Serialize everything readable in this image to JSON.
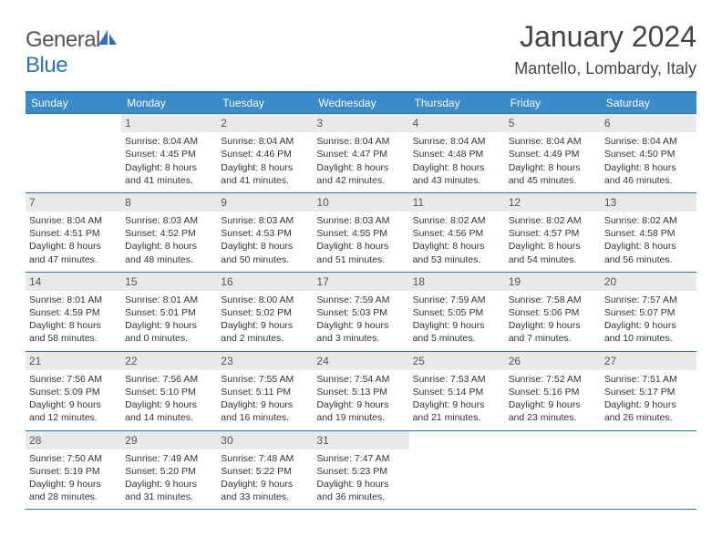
{
  "logo": {
    "general": "General",
    "blue": "Blue"
  },
  "title": "January 2024",
  "location": "Mantello, Lombardy, Italy",
  "weekdays": [
    "Sunday",
    "Monday",
    "Tuesday",
    "Wednesday",
    "Thursday",
    "Friday",
    "Saturday"
  ],
  "colors": {
    "header_bg": "#3b8bc9",
    "header_text": "#ffffff",
    "border": "#2d72b8",
    "daynum_bg": "#e9e9e9",
    "text": "#333333"
  },
  "weeks": [
    [
      null,
      {
        "n": "1",
        "sunrise": "Sunrise: 8:04 AM",
        "sunset": "Sunset: 4:45 PM",
        "dl1": "Daylight: 8 hours",
        "dl2": "and 41 minutes."
      },
      {
        "n": "2",
        "sunrise": "Sunrise: 8:04 AM",
        "sunset": "Sunset: 4:46 PM",
        "dl1": "Daylight: 8 hours",
        "dl2": "and 41 minutes."
      },
      {
        "n": "3",
        "sunrise": "Sunrise: 8:04 AM",
        "sunset": "Sunset: 4:47 PM",
        "dl1": "Daylight: 8 hours",
        "dl2": "and 42 minutes."
      },
      {
        "n": "4",
        "sunrise": "Sunrise: 8:04 AM",
        "sunset": "Sunset: 4:48 PM",
        "dl1": "Daylight: 8 hours",
        "dl2": "and 43 minutes."
      },
      {
        "n": "5",
        "sunrise": "Sunrise: 8:04 AM",
        "sunset": "Sunset: 4:49 PM",
        "dl1": "Daylight: 8 hours",
        "dl2": "and 45 minutes."
      },
      {
        "n": "6",
        "sunrise": "Sunrise: 8:04 AM",
        "sunset": "Sunset: 4:50 PM",
        "dl1": "Daylight: 8 hours",
        "dl2": "and 46 minutes."
      }
    ],
    [
      {
        "n": "7",
        "sunrise": "Sunrise: 8:04 AM",
        "sunset": "Sunset: 4:51 PM",
        "dl1": "Daylight: 8 hours",
        "dl2": "and 47 minutes."
      },
      {
        "n": "8",
        "sunrise": "Sunrise: 8:03 AM",
        "sunset": "Sunset: 4:52 PM",
        "dl1": "Daylight: 8 hours",
        "dl2": "and 48 minutes."
      },
      {
        "n": "9",
        "sunrise": "Sunrise: 8:03 AM",
        "sunset": "Sunset: 4:53 PM",
        "dl1": "Daylight: 8 hours",
        "dl2": "and 50 minutes."
      },
      {
        "n": "10",
        "sunrise": "Sunrise: 8:03 AM",
        "sunset": "Sunset: 4:55 PM",
        "dl1": "Daylight: 8 hours",
        "dl2": "and 51 minutes."
      },
      {
        "n": "11",
        "sunrise": "Sunrise: 8:02 AM",
        "sunset": "Sunset: 4:56 PM",
        "dl1": "Daylight: 8 hours",
        "dl2": "and 53 minutes."
      },
      {
        "n": "12",
        "sunrise": "Sunrise: 8:02 AM",
        "sunset": "Sunset: 4:57 PM",
        "dl1": "Daylight: 8 hours",
        "dl2": "and 54 minutes."
      },
      {
        "n": "13",
        "sunrise": "Sunrise: 8:02 AM",
        "sunset": "Sunset: 4:58 PM",
        "dl1": "Daylight: 8 hours",
        "dl2": "and 56 minutes."
      }
    ],
    [
      {
        "n": "14",
        "sunrise": "Sunrise: 8:01 AM",
        "sunset": "Sunset: 4:59 PM",
        "dl1": "Daylight: 8 hours",
        "dl2": "and 58 minutes."
      },
      {
        "n": "15",
        "sunrise": "Sunrise: 8:01 AM",
        "sunset": "Sunset: 5:01 PM",
        "dl1": "Daylight: 9 hours",
        "dl2": "and 0 minutes."
      },
      {
        "n": "16",
        "sunrise": "Sunrise: 8:00 AM",
        "sunset": "Sunset: 5:02 PM",
        "dl1": "Daylight: 9 hours",
        "dl2": "and 2 minutes."
      },
      {
        "n": "17",
        "sunrise": "Sunrise: 7:59 AM",
        "sunset": "Sunset: 5:03 PM",
        "dl1": "Daylight: 9 hours",
        "dl2": "and 3 minutes."
      },
      {
        "n": "18",
        "sunrise": "Sunrise: 7:59 AM",
        "sunset": "Sunset: 5:05 PM",
        "dl1": "Daylight: 9 hours",
        "dl2": "and 5 minutes."
      },
      {
        "n": "19",
        "sunrise": "Sunrise: 7:58 AM",
        "sunset": "Sunset: 5:06 PM",
        "dl1": "Daylight: 9 hours",
        "dl2": "and 7 minutes."
      },
      {
        "n": "20",
        "sunrise": "Sunrise: 7:57 AM",
        "sunset": "Sunset: 5:07 PM",
        "dl1": "Daylight: 9 hours",
        "dl2": "and 10 minutes."
      }
    ],
    [
      {
        "n": "21",
        "sunrise": "Sunrise: 7:56 AM",
        "sunset": "Sunset: 5:09 PM",
        "dl1": "Daylight: 9 hours",
        "dl2": "and 12 minutes."
      },
      {
        "n": "22",
        "sunrise": "Sunrise: 7:56 AM",
        "sunset": "Sunset: 5:10 PM",
        "dl1": "Daylight: 9 hours",
        "dl2": "and 14 minutes."
      },
      {
        "n": "23",
        "sunrise": "Sunrise: 7:55 AM",
        "sunset": "Sunset: 5:11 PM",
        "dl1": "Daylight: 9 hours",
        "dl2": "and 16 minutes."
      },
      {
        "n": "24",
        "sunrise": "Sunrise: 7:54 AM",
        "sunset": "Sunset: 5:13 PM",
        "dl1": "Daylight: 9 hours",
        "dl2": "and 19 minutes."
      },
      {
        "n": "25",
        "sunrise": "Sunrise: 7:53 AM",
        "sunset": "Sunset: 5:14 PM",
        "dl1": "Daylight: 9 hours",
        "dl2": "and 21 minutes."
      },
      {
        "n": "26",
        "sunrise": "Sunrise: 7:52 AM",
        "sunset": "Sunset: 5:16 PM",
        "dl1": "Daylight: 9 hours",
        "dl2": "and 23 minutes."
      },
      {
        "n": "27",
        "sunrise": "Sunrise: 7:51 AM",
        "sunset": "Sunset: 5:17 PM",
        "dl1": "Daylight: 9 hours",
        "dl2": "and 26 minutes."
      }
    ],
    [
      {
        "n": "28",
        "sunrise": "Sunrise: 7:50 AM",
        "sunset": "Sunset: 5:19 PM",
        "dl1": "Daylight: 9 hours",
        "dl2": "and 28 minutes."
      },
      {
        "n": "29",
        "sunrise": "Sunrise: 7:49 AM",
        "sunset": "Sunset: 5:20 PM",
        "dl1": "Daylight: 9 hours",
        "dl2": "and 31 minutes."
      },
      {
        "n": "30",
        "sunrise": "Sunrise: 7:48 AM",
        "sunset": "Sunset: 5:22 PM",
        "dl1": "Daylight: 9 hours",
        "dl2": "and 33 minutes."
      },
      {
        "n": "31",
        "sunrise": "Sunrise: 7:47 AM",
        "sunset": "Sunset: 5:23 PM",
        "dl1": "Daylight: 9 hours",
        "dl2": "and 36 minutes."
      },
      null,
      null,
      null
    ]
  ]
}
